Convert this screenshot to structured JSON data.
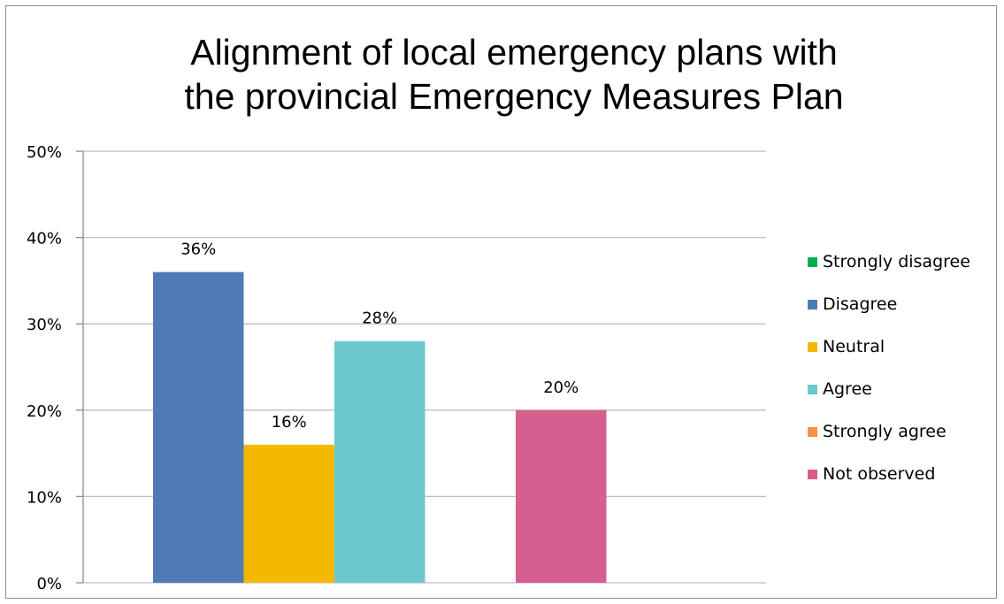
{
  "chart_data": {
    "type": "bar",
    "title": "Alignment of local emergency plans with the provincial Emergency Measures Plan",
    "title_lines": [
      "Alignment of local emergency plans with",
      "the provincial Emergency Measures Plan"
    ],
    "categories": [
      "Strongly disagree",
      "Disagree",
      "Neutral",
      "Agree",
      "Strongly agree",
      "Not observed"
    ],
    "values": [
      0,
      36,
      16,
      28,
      0,
      20
    ],
    "data_labels": [
      "",
      "36%",
      "16%",
      "28%",
      "",
      "20%"
    ],
    "colors": [
      "#00b050",
      "#4f7bb5",
      "#f5b800",
      "#6cc8cc",
      "#f79250",
      "#d55f8e"
    ],
    "ylim": [
      0,
      50
    ],
    "yticks": [
      0,
      10,
      20,
      30,
      40,
      50
    ],
    "ytick_labels": [
      "0%",
      "10%",
      "20%",
      "30%",
      "40%",
      "50%"
    ],
    "xlabel": "",
    "ylabel": "",
    "grid": true,
    "legend_position": "right"
  },
  "legend": {
    "items": [
      {
        "label": "Strongly disagree",
        "color": "#00b050"
      },
      {
        "label": "Disagree",
        "color": "#4f7bb5"
      },
      {
        "label": "Neutral",
        "color": "#f5b800"
      },
      {
        "label": "Agree",
        "color": "#6cc8cc"
      },
      {
        "label": "Strongly agree",
        "color": "#f79250"
      },
      {
        "label": "Not observed",
        "color": "#d55f8e"
      }
    ]
  }
}
